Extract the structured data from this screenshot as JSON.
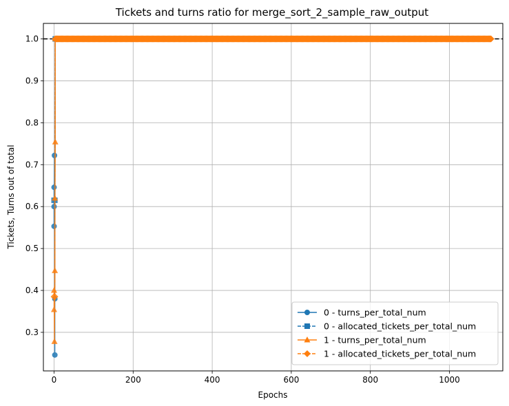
{
  "chart_data": {
    "type": "line",
    "title": "Tickets and turns ratio for merge_sort_2_sample_raw_output",
    "xlabel": "Epochs",
    "ylabel": "Tickets, Turns out of total",
    "xlim": [
      -27,
      1135
    ],
    "ylim": [
      0.208,
      1.037
    ],
    "xticks": [
      0,
      200,
      400,
      600,
      800,
      1000
    ],
    "yticks": [
      0.3,
      0.4,
      0.5,
      0.6,
      0.7,
      0.8,
      0.9,
      1.0
    ],
    "xtick_labels": [
      "0",
      "200",
      "400",
      "600",
      "800",
      "1000"
    ],
    "ytick_labels": [
      "0.3",
      "0.4",
      "0.5",
      "0.6",
      "0.7",
      "0.8",
      "0.9",
      "1.0"
    ],
    "grid": true,
    "legend_position": "lower-right",
    "reference_line": {
      "y": 1.0,
      "style": "dashed",
      "color": "#000000"
    },
    "x_end": 1106,
    "series": [
      {
        "name": "0 - turns_per_total_num",
        "color": "#1f77b4",
        "marker": "circle",
        "linestyle": "solid",
        "points": [
          [
            0,
            0.646
          ],
          [
            0,
            0.6
          ],
          [
            0,
            0.553
          ],
          [
            1,
            0.722
          ],
          [
            2,
            0.246
          ],
          [
            2,
            0.38
          ],
          [
            3,
            1.0
          ]
        ]
      },
      {
        "name": "0 - allocated_tickets_per_total_num",
        "color": "#1f77b4",
        "marker": "square",
        "linestyle": "dashed",
        "points": [
          [
            0,
            0.615
          ],
          [
            2,
            0.615
          ],
          [
            3,
            1.0
          ]
        ]
      },
      {
        "name": "1 - turns_per_total_num",
        "color": "#ff7f0e",
        "marker": "triangle",
        "linestyle": "solid",
        "points": [
          [
            0,
            0.354
          ],
          [
            0,
            0.4
          ],
          [
            1,
            0.278
          ],
          [
            2,
            0.447
          ],
          [
            2,
            0.62
          ],
          [
            3,
            0.754
          ],
          [
            3,
            1.0
          ]
        ]
      },
      {
        "name": "1 - allocated_tickets_per_total_num",
        "color": "#ff7f0e",
        "marker": "diamond",
        "linestyle": "dashed",
        "points": [
          [
            0,
            0.385
          ],
          [
            2,
            0.385
          ],
          [
            3,
            1.0
          ]
        ]
      }
    ]
  }
}
